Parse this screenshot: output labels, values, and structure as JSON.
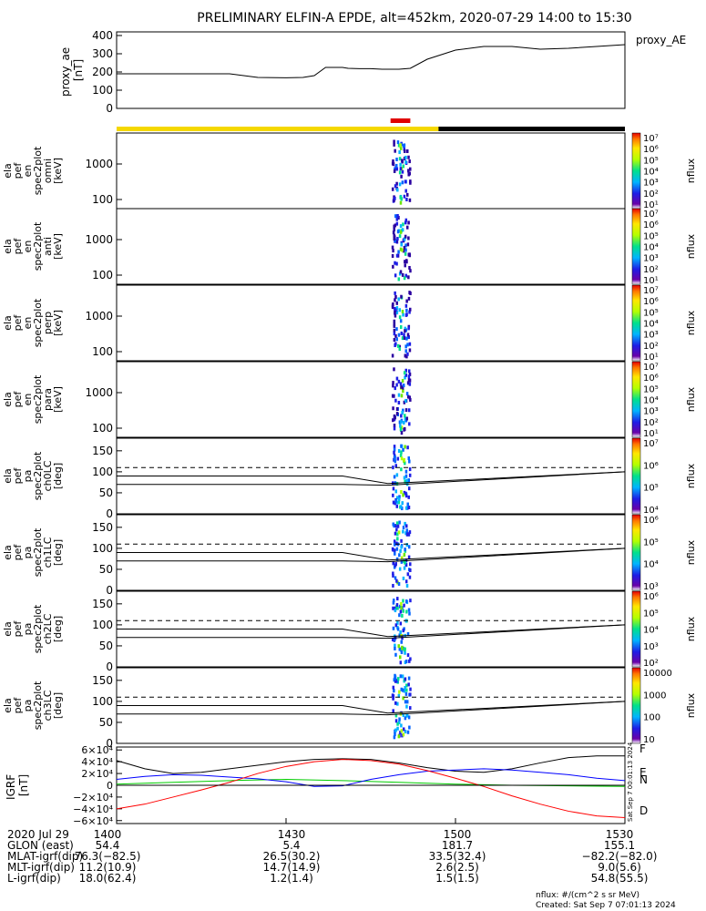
{
  "title": "PRELIMINARY ELFIN-A EPDE, alt=452km, 2020-07-29 14:00 to 15:30",
  "colors": {
    "yellow_bar": "#F5D800",
    "red_bar": "#E00000",
    "black_bar": "#000000",
    "bx": "#0000FF",
    "by": "#00CC00",
    "bz": "#FF0000",
    "bmag": "#000000"
  },
  "panels": [
    {
      "id": "proxy_ae",
      "ylabel": [
        "proxy_ae",
        "[nT]"
      ],
      "right_label": "proxy_AE"
    },
    {
      "id": "omni",
      "ylabel": [
        "ela",
        "pef",
        "en",
        "spec2plot",
        "omni",
        "[keV]"
      ],
      "yticks": [
        "1000",
        "100"
      ],
      "colorbar_ticks": [
        "10⁷",
        "10⁶",
        "10⁵",
        "10⁴",
        "10³",
        "10²",
        "10¹"
      ],
      "colorbar_label": "nflux"
    },
    {
      "id": "anti",
      "ylabel": [
        "ela",
        "pef",
        "en",
        "spec2plot",
        "anti",
        "[keV]"
      ],
      "yticks": [
        "1000",
        "100"
      ],
      "colorbar_ticks": [
        "10⁷",
        "10⁶",
        "10⁵",
        "10⁴",
        "10³",
        "10²",
        "10¹"
      ],
      "colorbar_label": "nflux"
    },
    {
      "id": "perp",
      "ylabel": [
        "ela",
        "pef",
        "en",
        "spec2plot",
        "perp",
        "[keV]"
      ],
      "yticks": [
        "1000",
        "100"
      ],
      "colorbar_ticks": [
        "10⁷",
        "10⁶",
        "10⁵",
        "10⁴",
        "10³",
        "10²",
        "10¹"
      ],
      "colorbar_label": "nflux"
    },
    {
      "id": "para",
      "ylabel": [
        "ela",
        "pef",
        "en",
        "spec2plot",
        "para",
        "[keV]"
      ],
      "yticks": [
        "1000",
        "100"
      ],
      "colorbar_ticks": [
        "10⁷",
        "10⁶",
        "10⁵",
        "10⁴",
        "10³",
        "10²",
        "10¹"
      ],
      "colorbar_label": "nflux"
    },
    {
      "id": "ch0",
      "ylabel": [
        "ela",
        "pef",
        "pa",
        "spec2plot",
        "ch0LC",
        "[deg]"
      ],
      "yticks": [
        "150",
        "100",
        "50",
        "0"
      ],
      "colorbar_ticks": [
        "10⁷",
        "10⁶",
        "10⁵",
        "10⁴"
      ],
      "colorbar_label": "nflux"
    },
    {
      "id": "ch1",
      "ylabel": [
        "ela",
        "pef",
        "pa",
        "spec2plot",
        "ch1LC",
        "[deg]"
      ],
      "yticks": [
        "150",
        "100",
        "50",
        "0"
      ],
      "colorbar_ticks": [
        "10⁶",
        "10⁵",
        "10⁴",
        "10³"
      ],
      "colorbar_label": "nflux"
    },
    {
      "id": "ch2",
      "ylabel": [
        "ela",
        "pef",
        "pa",
        "spec2plot",
        "ch2LC",
        "[deg]"
      ],
      "yticks": [
        "150",
        "100",
        "50",
        "0"
      ],
      "colorbar_ticks": [
        "10⁶",
        "10⁵",
        "10⁴",
        "10³",
        "10²"
      ],
      "colorbar_label": "nflux"
    },
    {
      "id": "ch3",
      "ylabel": [
        "ela",
        "pef",
        "pa",
        "spec2plot",
        "ch3LC",
        "[deg]"
      ],
      "yticks": [
        "150",
        "100",
        "50",
        "0"
      ],
      "colorbar_ticks": [
        "10000",
        "1000",
        "100",
        "10"
      ],
      "colorbar_label": "nflux"
    },
    {
      "id": "igrf",
      "ylabel": [
        "IGRF",
        "[nT]"
      ],
      "yticks": [
        "6×10⁴",
        "4×10⁴",
        "2×10⁴",
        "0",
        "−2×10⁴",
        "−4×10⁴",
        "−6×10⁴"
      ],
      "right_labels": [
        "F",
        "E",
        "N",
        "D"
      ],
      "right_label_colors": [
        "#000000",
        "#00CC00",
        "#0000FF",
        "#FF0000"
      ],
      "stamp": "Sat Sep  7 00:01:13 2024"
    }
  ],
  "chart_data": {
    "type": "line",
    "x_ticks": [
      "1400",
      "1430",
      "1500",
      "1530"
    ],
    "x_range": [
      0,
      90
    ],
    "proxy_ae": {
      "yticks": [
        "400",
        "300",
        "200",
        "100",
        "0"
      ],
      "ylim": [
        0,
        420
      ],
      "x": [
        0,
        5,
        10,
        15,
        20,
        25,
        30,
        33,
        35,
        37,
        40,
        41,
        43,
        45,
        47,
        50,
        52,
        55,
        60,
        65,
        70,
        75,
        80,
        85,
        90
      ],
      "y": [
        190,
        190,
        190,
        190,
        190,
        170,
        168,
        170,
        180,
        225,
        225,
        220,
        218,
        218,
        215,
        215,
        220,
        270,
        320,
        340,
        340,
        325,
        330,
        340,
        350
      ]
    },
    "igrf": {
      "ylim": [
        -65000,
        65000
      ],
      "series": [
        {
          "name": "F",
          "x": [
            0,
            5,
            10,
            15,
            20,
            25,
            30,
            35,
            40,
            45,
            50,
            55,
            60,
            65,
            70,
            75,
            80,
            85,
            90
          ],
          "y": [
            42000,
            28000,
            20000,
            22000,
            28000,
            34000,
            40000,
            44000,
            45000,
            44000,
            38000,
            30000,
            24000,
            22000,
            28000,
            38000,
            47000,
            50000,
            50000
          ]
        },
        {
          "name": "E",
          "x": [
            0,
            10,
            20,
            30,
            40,
            50,
            60,
            70,
            80,
            90
          ],
          "y": [
            2000,
            5000,
            8000,
            10000,
            8000,
            5000,
            2000,
            0,
            -1000,
            -2000
          ]
        },
        {
          "name": "N",
          "x": [
            0,
            5,
            10,
            15,
            20,
            25,
            30,
            35,
            40,
            45,
            50,
            55,
            60,
            65,
            70,
            75,
            80,
            85,
            90
          ],
          "y": [
            10000,
            15000,
            18000,
            17000,
            14000,
            11000,
            6000,
            -2000,
            -1000,
            10000,
            18000,
            24000,
            26000,
            28000,
            26000,
            22000,
            18000,
            12000,
            8000
          ]
        },
        {
          "name": "D",
          "x": [
            0,
            5,
            10,
            15,
            20,
            25,
            30,
            35,
            40,
            45,
            50,
            55,
            60,
            65,
            70,
            75,
            80,
            85,
            90
          ],
          "y": [
            -40000,
            -32000,
            -20000,
            -8000,
            5000,
            20000,
            32000,
            40000,
            44000,
            42000,
            36000,
            25000,
            12000,
            -2000,
            -18000,
            -32000,
            -44000,
            -52000,
            -55000
          ]
        },
        {
          "name": "zero",
          "x": [
            0,
            90
          ],
          "y": [
            0,
            0
          ]
        }
      ]
    },
    "pa_lines": {
      "dashed": 110,
      "solid_upper": [
        [
          0,
          90
        ],
        [
          40,
          90
        ],
        [
          48,
          72
        ],
        [
          90,
          100
        ]
      ],
      "solid_lower": [
        [
          0,
          70
        ],
        [
          40,
          70
        ],
        [
          48,
          68
        ],
        [
          90,
          100
        ]
      ]
    },
    "spectrogram_window": {
      "x_start": 48.5,
      "x_end": 52.0
    }
  },
  "footer": {
    "rows": [
      {
        "label": "2020 Jul 29",
        "values": [
          "1400",
          "1430",
          "1500",
          "1530"
        ]
      },
      {
        "label": "GLON (east)",
        "values": [
          "54.4",
          "5.4",
          "181.7",
          "155.1"
        ]
      },
      {
        "label": "MLAT-igrf(dip)",
        "values": [
          "76.3(−82.5)",
          "26.5(30.2)",
          "33.5(32.4)",
          "−82.2(−82.0)"
        ]
      },
      {
        "label": "MLT-igrf(dip)",
        "values": [
          "11.2(10.9)",
          "14.7(14.9)",
          "2.6(2.5)",
          "9.0(5.6)"
        ]
      },
      {
        "label": "L-igrf(dip)",
        "values": [
          "18.0(62.4)",
          "1.2(1.4)",
          "1.5(1.5)",
          "54.8(55.5)"
        ]
      }
    ],
    "units_note": "nflux: #/(cm^2 s sr MeV)",
    "created": "Created: Sat Sep  7 07:01:13 2024"
  }
}
